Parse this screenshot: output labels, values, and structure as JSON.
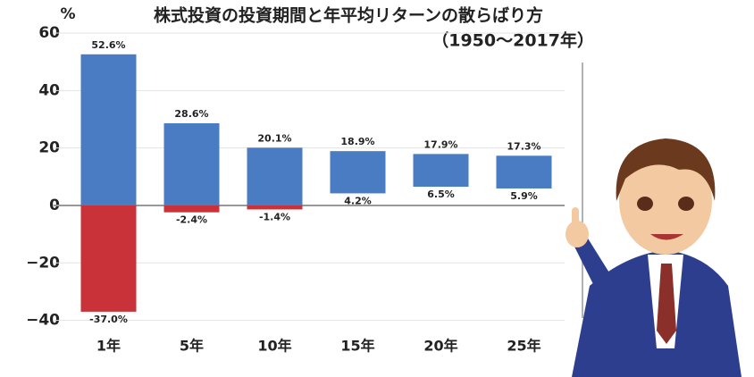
{
  "chart_data": {
    "type": "range",
    "title": "株式投資の投資期間と年平均リターンの散らばり方",
    "subtitle": "（1950〜2017年）",
    "y_unit": "%",
    "categories": [
      "1年",
      "5年",
      "10年",
      "15年",
      "20年",
      "25年"
    ],
    "high": [
      52.6,
      28.6,
      20.1,
      18.9,
      17.9,
      17.3
    ],
    "high_labels": [
      "52.6%",
      "28.6%",
      "20.1%",
      "18.9%",
      "17.9%",
      "17.3%"
    ],
    "low": [
      -37.0,
      -2.4,
      -1.4,
      4.2,
      6.5,
      5.9
    ],
    "low_labels": [
      "-37.0%",
      "-2.4%",
      "-1.4%",
      "4.2%",
      "6.5%",
      "5.9%"
    ],
    "positive_color": "#4a7cc4",
    "negative_color": "#c83238",
    "ylim": [
      -42,
      60
    ],
    "yticks": [
      {
        "value": -40,
        "label": "−40"
      },
      {
        "value": -20,
        "label": "−20"
      },
      0,
      20,
      40,
      60
    ],
    "grid": true
  }
}
